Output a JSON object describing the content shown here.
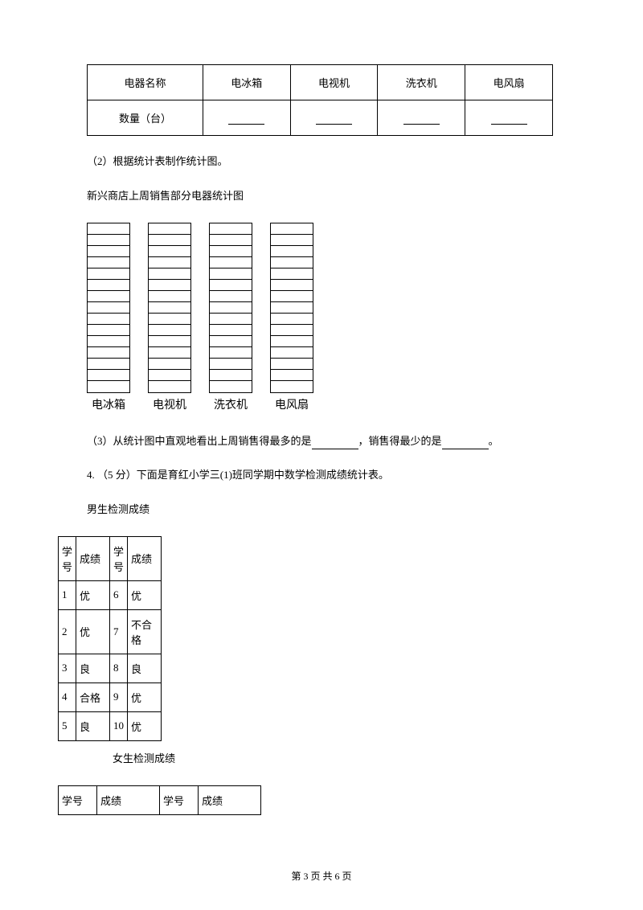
{
  "appliance_table": {
    "headers": [
      "电器名称",
      "电冰箱",
      "电视机",
      "洗衣机",
      "电风扇"
    ],
    "row_label": "数量（台）",
    "row_blanks": 4
  },
  "q2_text": "（2）根据统计表制作统计图。",
  "chart_title": "新兴商店上周销售部分电器统计图",
  "chart": {
    "type": "bar-grid",
    "bars": [
      {
        "label": "电冰箱",
        "cells": 15
      },
      {
        "label": "电视机",
        "cells": 15
      },
      {
        "label": "洗衣机",
        "cells": 15
      },
      {
        "label": "电风扇",
        "cells": 15
      }
    ],
    "cell_border_color": "#000000",
    "background_color": "#ffffff"
  },
  "q3_prefix": "（3）从统计图中直观地看出上周销售得最多的是",
  "q3_mid": "，销售得最少的是",
  "q3_suffix": "。",
  "q4_text": "4.  （5 分）下面是育红小学三(1)班同学期中数学检测成绩统计表。",
  "male_title": "男生检测成绩",
  "male_table": {
    "columns": [
      "学号",
      "成绩",
      "学号",
      "成绩"
    ],
    "rows": [
      [
        "1",
        "优",
        "6",
        "优"
      ],
      [
        "2",
        "优",
        "7",
        "不合格"
      ],
      [
        "3",
        "良",
        "8",
        "良"
      ],
      [
        "4",
        "合格",
        "9",
        "优"
      ],
      [
        "5",
        "良",
        "10",
        "优"
      ]
    ]
  },
  "female_title": "女生检测成绩",
  "female_table": {
    "columns": [
      "学号",
      "成绩",
      "学号",
      "成绩"
    ]
  },
  "footer": "第 3 页 共 6 页"
}
